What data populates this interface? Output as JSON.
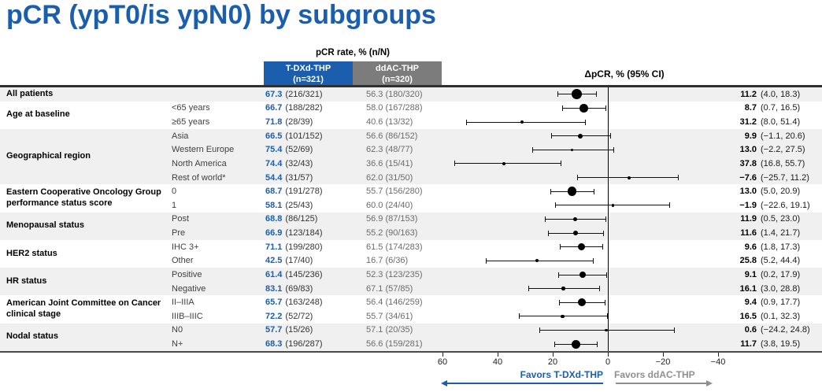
{
  "title": "pCR (ypT0/is ypN0) by subgroups",
  "header": {
    "pcr_rate": "pCR rate, % (n/N)",
    "arm1": {
      "name": "T-DXd-THP",
      "n": "(n=321)"
    },
    "arm2": {
      "name": "ddAC-THP",
      "n": "(n=320)"
    },
    "delta": "ΔpCR, % (95% CI)"
  },
  "colors": {
    "brand_blue": "#1B5EAD",
    "header_gray": "#7C7C7C",
    "ddac_text_gray": "#6B6B6B",
    "favors_gray": "#8F8F8F",
    "row_band_gray": "#F0F0F0",
    "marker_black": "#000000"
  },
  "chart_data": {
    "type": "scatter",
    "subtype": "forest-plot",
    "title": "pCR (ypT0/is ypN0) by subgroups",
    "xlabel": "ΔpCR, % (95% CI)",
    "x_axis": {
      "ticks": [
        60,
        40,
        20,
        0,
        -20,
        -40
      ],
      "reversed": true,
      "zero_reference_line": true
    },
    "footer": {
      "favors_left": "Favors T-DXd-THP",
      "favors_right": "Favors ddAC-THP"
    },
    "groups": [
      {
        "label": "All patients",
        "rows": [
          {
            "sub": "",
            "arm1_pct": 67.3,
            "arm1_frac": "(216/321)",
            "arm2_pct": 56.3,
            "arm2_frac": "(180/320)",
            "delta": 11.2,
            "ci": [
              4.0,
              18.3
            ],
            "marker": 13
          }
        ]
      },
      {
        "label": "Age at baseline",
        "rows": [
          {
            "sub": "<65 years",
            "arm1_pct": 66.7,
            "arm1_frac": "(188/282)",
            "arm2_pct": 58.0,
            "arm2_frac": "(167/288)",
            "delta": 8.7,
            "ci": [
              0.7,
              16.5
            ],
            "marker": 10.5
          },
          {
            "sub": "≥65 years",
            "arm1_pct": 71.8,
            "arm1_frac": "(28/39)",
            "arm2_pct": 40.6,
            "arm2_frac": "(13/32)",
            "delta": 31.2,
            "ci": [
              8.0,
              51.4
            ],
            "marker": 4
          }
        ]
      },
      {
        "label": "Geographical region",
        "rows": [
          {
            "sub": "Asia",
            "arm1_pct": 66.5,
            "arm1_frac": "(101/152)",
            "arm2_pct": 56.6,
            "arm2_frac": "(86/152)",
            "delta": 9.9,
            "ci": [
              -1.1,
              20.6
            ],
            "marker": 6
          },
          {
            "sub": "Western Europe",
            "arm1_pct": 75.4,
            "arm1_frac": "(52/69)",
            "arm2_pct": 62.3,
            "arm2_frac": "(48/77)",
            "delta": 13.0,
            "ci": [
              -2.2,
              27.5
            ],
            "marker": 3.5
          },
          {
            "sub": "North America",
            "arm1_pct": 74.4,
            "arm1_frac": "(32/43)",
            "arm2_pct": 36.6,
            "arm2_frac": "(15/41)",
            "delta": 37.8,
            "ci": [
              16.8,
              55.7
            ],
            "marker": 4
          },
          {
            "sub": "Rest of world*",
            "arm1_pct": 54.4,
            "arm1_frac": "(31/57)",
            "arm2_pct": 62.0,
            "arm2_frac": "(31/50)",
            "delta": -7.6,
            "ci": [
              -25.7,
              11.2
            ],
            "marker": 4
          }
        ]
      },
      {
        "label": "Eastern Cooperative Oncology Group performance status score",
        "rows": [
          {
            "sub": "0",
            "arm1_pct": 68.7,
            "arm1_frac": "(191/278)",
            "arm2_pct": 55.7,
            "arm2_frac": "(156/280)",
            "delta": 13.0,
            "ci": [
              5.0,
              20.9
            ],
            "marker": 11.5
          },
          {
            "sub": "1",
            "arm1_pct": 58.1,
            "arm1_frac": "(25/43)",
            "arm2_pct": 60.0,
            "arm2_frac": "(24/40)",
            "delta": -1.9,
            "ci": [
              -22.6,
              19.1
            ],
            "marker": 3.5
          }
        ]
      },
      {
        "label": "Menopausal status",
        "rows": [
          {
            "sub": "Post",
            "arm1_pct": 68.8,
            "arm1_frac": "(86/125)",
            "arm2_pct": 56.9,
            "arm2_frac": "(87/153)",
            "delta": 11.9,
            "ci": [
              0.5,
              23.0
            ],
            "marker": 5.5
          },
          {
            "sub": "Pre",
            "arm1_pct": 66.9,
            "arm1_frac": "(123/184)",
            "arm2_pct": 55.2,
            "arm2_frac": "(90/163)",
            "delta": 11.6,
            "ci": [
              1.4,
              21.7
            ],
            "marker": 6
          }
        ]
      },
      {
        "label": "HER2 status",
        "rows": [
          {
            "sub": "IHC 3+",
            "arm1_pct": 71.1,
            "arm1_frac": "(199/280)",
            "arm2_pct": 61.5,
            "arm2_frac": "(174/283)",
            "delta": 9.6,
            "ci": [
              1.8,
              17.3
            ],
            "marker": 9
          },
          {
            "sub": "Other",
            "arm1_pct": 42.5,
            "arm1_frac": "(17/40)",
            "arm2_pct": 16.7,
            "arm2_frac": "(6/36)",
            "delta": 25.8,
            "ci": [
              5.2,
              44.4
            ],
            "marker": 4
          }
        ]
      },
      {
        "label": "HR status",
        "rows": [
          {
            "sub": "Positive",
            "arm1_pct": 61.4,
            "arm1_frac": "(145/236)",
            "arm2_pct": 52.3,
            "arm2_frac": "(123/235)",
            "delta": 9.1,
            "ci": [
              0.2,
              17.9
            ],
            "marker": 8.5
          },
          {
            "sub": "Negative",
            "arm1_pct": 83.1,
            "arm1_frac": "(69/83)",
            "arm2_pct": 67.1,
            "arm2_frac": "(57/85)",
            "delta": 16.1,
            "ci": [
              3.0,
              28.8
            ],
            "marker": 4.5
          }
        ]
      },
      {
        "label": "American Joint Committee on Cancer clinical stage",
        "rows": [
          {
            "sub": "II–IIIA",
            "arm1_pct": 65.7,
            "arm1_frac": "(163/248)",
            "arm2_pct": 56.4,
            "arm2_frac": "(146/259)",
            "delta": 9.4,
            "ci": [
              0.9,
              17.7
            ],
            "marker": 10
          },
          {
            "sub": "IIIB–IIIC",
            "arm1_pct": 72.2,
            "arm1_frac": "(52/72)",
            "arm2_pct": 55.7,
            "arm2_frac": "(34/61)",
            "delta": 16.5,
            "ci": [
              0.1,
              32.3
            ],
            "marker": 4.5
          }
        ]
      },
      {
        "label": "Nodal status",
        "rows": [
          {
            "sub": "N0",
            "arm1_pct": 57.7,
            "arm1_frac": "(15/26)",
            "arm2_pct": 57.1,
            "arm2_frac": "(20/35)",
            "delta": 0.6,
            "ci": [
              -24.2,
              24.8
            ],
            "marker": 3.5
          },
          {
            "sub": "N+",
            "arm1_pct": 68.3,
            "arm1_frac": "(196/287)",
            "arm2_pct": 56.6,
            "arm2_frac": "(159/281)",
            "delta": 11.7,
            "ci": [
              3.8,
              19.5
            ],
            "marker": 11
          }
        ]
      }
    ]
  }
}
